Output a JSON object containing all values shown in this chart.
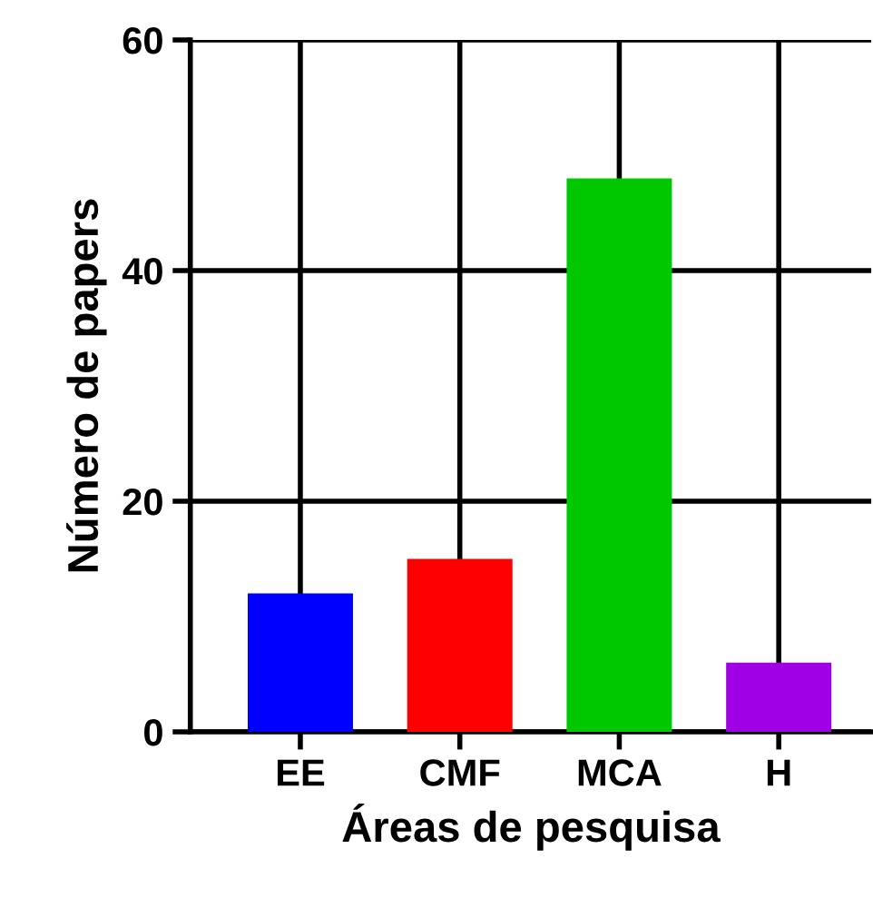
{
  "chart_data": {
    "type": "bar",
    "xlabel": "Áreas de pesquisa",
    "ylabel": "Número de papers",
    "categories": [
      "EE",
      "CMF",
      "MCA",
      "H"
    ],
    "values": [
      12,
      15,
      48,
      6
    ],
    "colors": [
      "#0000ff",
      "#ff0000",
      "#00c800",
      "#a000e6"
    ],
    "ylim": [
      0,
      60
    ],
    "yticks": [
      0,
      20,
      40,
      60
    ],
    "grid": true,
    "legend": false
  }
}
